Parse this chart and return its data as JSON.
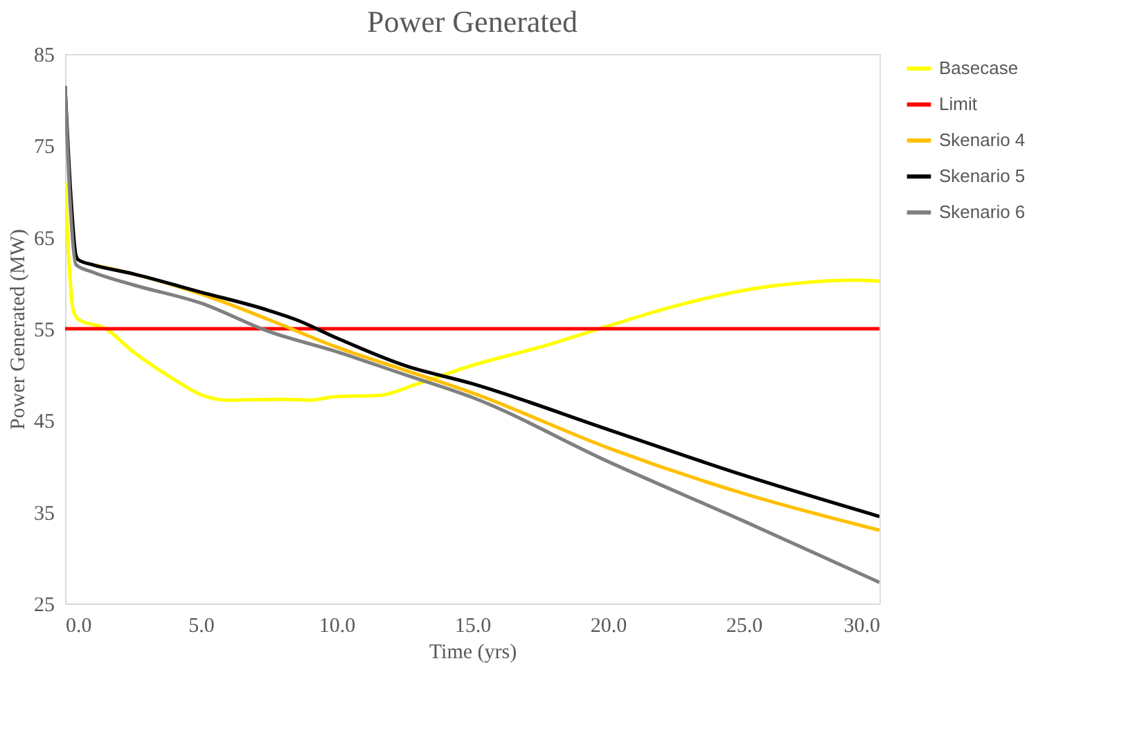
{
  "chart_data": {
    "type": "line",
    "title": "Power Generated",
    "xlabel": "Time (yrs)",
    "ylabel": "Power Generated (MW)",
    "xlim": [
      0,
      30
    ],
    "ylim": [
      25,
      85
    ],
    "xticks": [
      {
        "value": 0,
        "label": "0.0"
      },
      {
        "value": 5,
        "label": "5.0"
      },
      {
        "value": 10,
        "label": "10.0"
      },
      {
        "value": 15,
        "label": "15.0"
      },
      {
        "value": 20,
        "label": "20.0"
      },
      {
        "value": 25,
        "label": "25.0"
      },
      {
        "value": 30,
        "label": "30.0"
      }
    ],
    "yticks": [
      25,
      35,
      45,
      55,
      65,
      75,
      85
    ],
    "grid": false,
    "legend": "right",
    "marker": "none",
    "line_style": "solid",
    "series": [
      {
        "name": "Basecase",
        "color": "#ffff00",
        "x": [
          0,
          0.15,
          0.3,
          0.5,
          1.5,
          2.5,
          4,
          5,
          6,
          8,
          9,
          10,
          11.5,
          13,
          15,
          17.5,
          20,
          22.5,
          25,
          27.5,
          29,
          30
        ],
        "values": [
          71,
          62,
          57,
          56,
          55,
          52.5,
          49.5,
          47.8,
          47.2,
          47.3,
          47.2,
          47.6,
          47.7,
          49,
          51,
          53,
          55.3,
          57.5,
          59.2,
          60.1,
          60.3,
          60.2
        ]
      },
      {
        "name": "Limit",
        "color": "#ff0000",
        "x": [
          0,
          30
        ],
        "values": [
          55,
          55
        ]
      },
      {
        "name": "Skenario 4",
        "color": "#ffc000",
        "x": [
          1,
          2.5,
          5,
          7.5,
          10,
          12.5,
          15,
          20,
          25,
          30
        ],
        "values": [
          62,
          61,
          58.8,
          56,
          53,
          50.5,
          48,
          42,
          37,
          33
        ]
      },
      {
        "name": "Skenario 5",
        "color": "#000000",
        "x": [
          0,
          0.2,
          0.4,
          0.5,
          1,
          2.5,
          5,
          7.5,
          8.5,
          10,
          12.5,
          15,
          20,
          25,
          30
        ],
        "values": [
          81.5,
          70,
          63,
          62.5,
          62,
          61,
          59,
          57,
          56,
          54,
          51,
          49,
          44,
          39,
          34.5
        ]
      },
      {
        "name": "Skenario 6",
        "color": "#808080",
        "x": [
          0,
          0.2,
          0.4,
          1,
          2.5,
          5,
          7.5,
          10,
          12.5,
          15,
          20,
          25,
          30
        ],
        "values": [
          81.5,
          68,
          62,
          61.2,
          59.8,
          57.8,
          54.7,
          52.5,
          50,
          47.5,
          40.5,
          34,
          27.3
        ]
      }
    ]
  }
}
